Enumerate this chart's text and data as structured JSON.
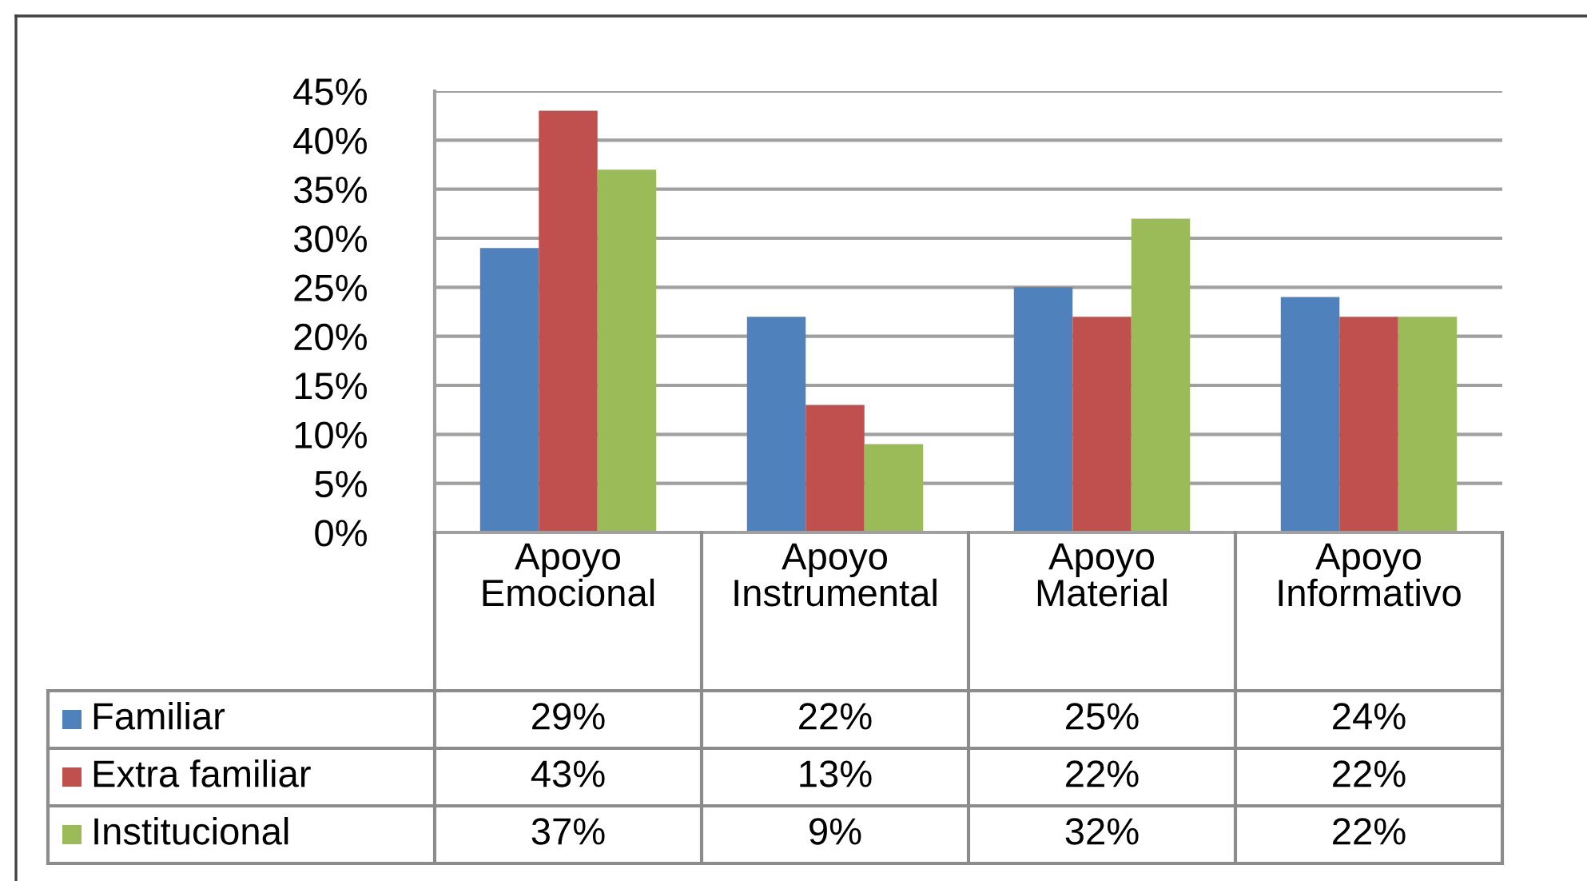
{
  "chart_data": {
    "type": "bar",
    "categories": [
      "Apoyo Emocional",
      "Apoyo Instrumental",
      "Apoyo Material",
      "Apoyo Informativo"
    ],
    "series": [
      {
        "name": "Familiar",
        "color": "#4f81bd",
        "values": [
          29,
          22,
          25,
          24
        ],
        "value_labels": [
          "29%",
          "22%",
          "25%",
          "24%"
        ]
      },
      {
        "name": "Extra familiar",
        "color": "#c0504d",
        "values": [
          43,
          13,
          22,
          22
        ],
        "value_labels": [
          "43%",
          "13%",
          "22%",
          "22%"
        ]
      },
      {
        "name": "Institucional",
        "color": "#9bbb59",
        "values": [
          37,
          9,
          32,
          22
        ],
        "value_labels": [
          "37%",
          "9%",
          "32%",
          "22%"
        ]
      }
    ],
    "ylim": [
      0,
      45
    ],
    "yticks": [
      {
        "value": 0,
        "label": "0%"
      },
      {
        "value": 5,
        "label": "5%"
      },
      {
        "value": 10,
        "label": "10%"
      },
      {
        "value": 15,
        "label": "15%"
      },
      {
        "value": 20,
        "label": "20%"
      },
      {
        "value": 25,
        "label": "25%"
      },
      {
        "value": 30,
        "label": "30%"
      },
      {
        "value": 35,
        "label": "35%"
      },
      {
        "value": 40,
        "label": "40%"
      },
      {
        "value": 45,
        "label": "45%"
      }
    ],
    "grid": "y",
    "legend": "bottom"
  }
}
